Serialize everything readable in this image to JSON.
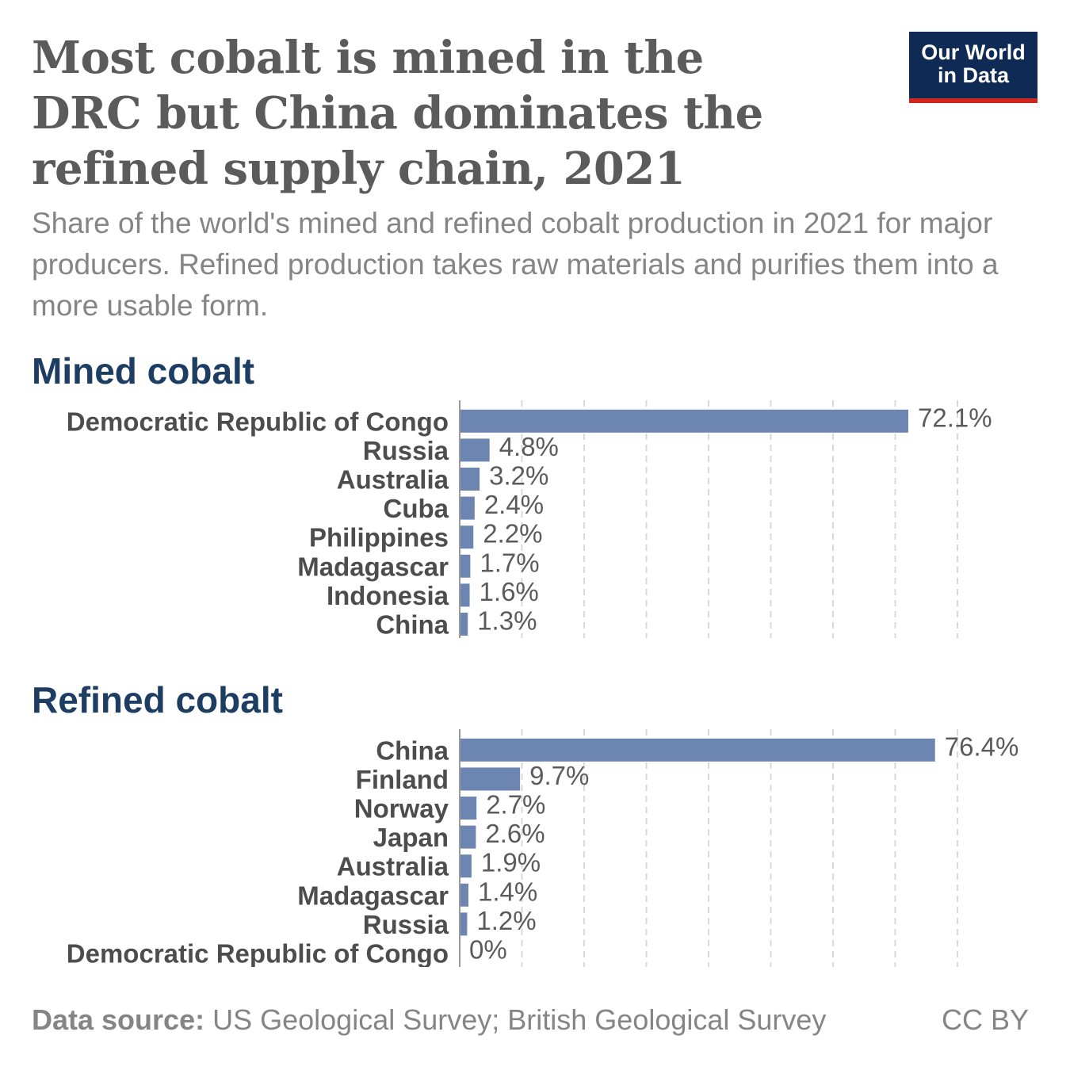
{
  "title": "Most cobalt is mined in the DRC but China dominates the refined supply chain, 2021",
  "subtitle": "Share of the world's mined and refined cobalt production in 2021 for major producers. Refined production takes raw materials and purifies them into a more usable form.",
  "logo": {
    "line1": "Our World",
    "line2": "in Data"
  },
  "footer": {
    "source_label": "Data source:",
    "source_text": "US Geological Survey; British Geological Survey",
    "license": "CC BY"
  },
  "colors": {
    "bar": "#6d86b1",
    "section_title": "#1d3d63",
    "logo_bg": "#0f2a55",
    "logo_accent": "#ce261e"
  },
  "chart_data": [
    {
      "type": "bar",
      "orientation": "horizontal",
      "title": "Mined cobalt",
      "unit": "%",
      "categories": [
        "Democratic Republic of Congo",
        "Russia",
        "Australia",
        "Cuba",
        "Philippines",
        "Madagascar",
        "Indonesia",
        "China"
      ],
      "values": [
        72.1,
        4.8,
        3.2,
        2.4,
        2.2,
        1.7,
        1.6,
        1.3
      ],
      "labels": [
        "72.1%",
        "4.8%",
        "3.2%",
        "2.4%",
        "2.2%",
        "1.7%",
        "1.6%",
        "1.3%"
      ],
      "xlim": [
        0,
        80
      ],
      "grid": true
    },
    {
      "type": "bar",
      "orientation": "horizontal",
      "title": "Refined cobalt",
      "unit": "%",
      "categories": [
        "China",
        "Finland",
        "Norway",
        "Japan",
        "Australia",
        "Madagascar",
        "Russia",
        "Democratic Republic of Congo"
      ],
      "values": [
        76.4,
        9.7,
        2.7,
        2.6,
        1.9,
        1.4,
        1.2,
        0
      ],
      "labels": [
        "76.4%",
        "9.7%",
        "2.7%",
        "2.6%",
        "1.9%",
        "1.4%",
        "1.2%",
        "0%"
      ],
      "xlim": [
        0,
        80
      ],
      "grid": true
    }
  ]
}
